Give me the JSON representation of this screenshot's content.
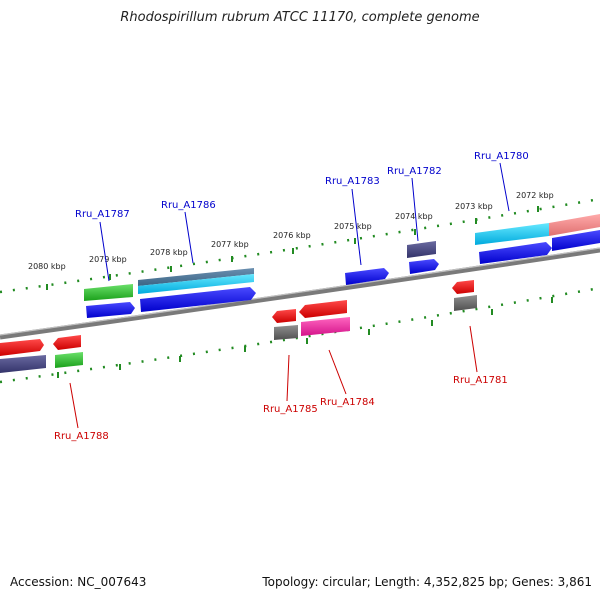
{
  "title": "Rhodospirillum rubrum ATCC 11170, complete genome",
  "accession": "Accession: NC_007643",
  "topology": "Topology: circular; Length: 4,352,825 bp; Genes: 3,861",
  "scale_labels": [
    "2080 kbp",
    "2079 kbp",
    "2078 kbp",
    "2077 kbp",
    "2076 kbp",
    "2075 kbp",
    "2074 kbp",
    "2073 kbp",
    "2072 kbp"
  ],
  "gene_labels_top": [
    "Rru_A1787",
    "Rru_A1786",
    "Rru_A1783",
    "Rru_A1782",
    "Rru_A1780"
  ],
  "gene_labels_bottom": [
    "Rru_A1788",
    "Rru_A1785",
    "Rru_A1784",
    "Rru_A1781"
  ],
  "colors": {
    "forward_label": "#0000cc",
    "reverse_label": "#cc0000",
    "ticks": "#228b22",
    "backbone": "#808080"
  }
}
